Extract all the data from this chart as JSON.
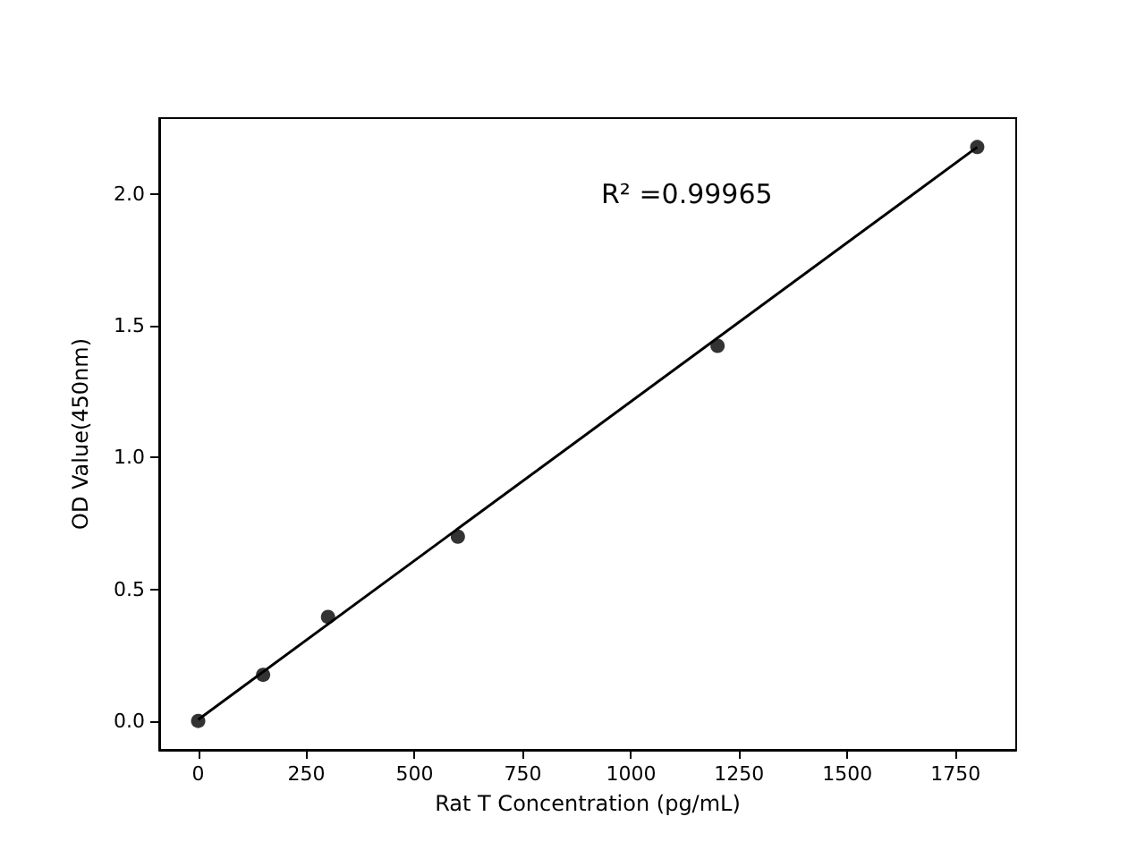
{
  "chart_data": {
    "type": "scatter",
    "xlabel": "Rat T Concentration (pg/mL)",
    "ylabel": "OD Value(450nm)",
    "annotations": [
      "R² =0.99965"
    ],
    "xlim": [
      -90,
      1890
    ],
    "xticks": [
      0,
      250,
      500,
      750,
      1000,
      1250,
      1500,
      1750
    ],
    "ylim": [
      -0.11,
      2.29
    ],
    "yticks": [
      {
        "value": 0,
        "label": "0.0"
      },
      {
        "value": 0.5,
        "label": "0.5"
      },
      {
        "value": 1,
        "label": "1.0"
      },
      {
        "value": 1.5,
        "label": "1.5"
      },
      {
        "value": 2,
        "label": "2.0"
      }
    ],
    "series": [
      {
        "color": "#000000",
        "marker": "circle",
        "x": [
          0,
          150,
          300,
          600,
          1200,
          1800
        ],
        "values": [
          0,
          0.175,
          0.395,
          0.7,
          1.425,
          2.18
        ]
      },
      {
        "type": "line",
        "color": "#000000",
        "marker": "none",
        "line_style": "solid",
        "x": [
          0,
          1800
        ],
        "values": [
          0.005,
          2.18
        ]
      }
    ]
  }
}
